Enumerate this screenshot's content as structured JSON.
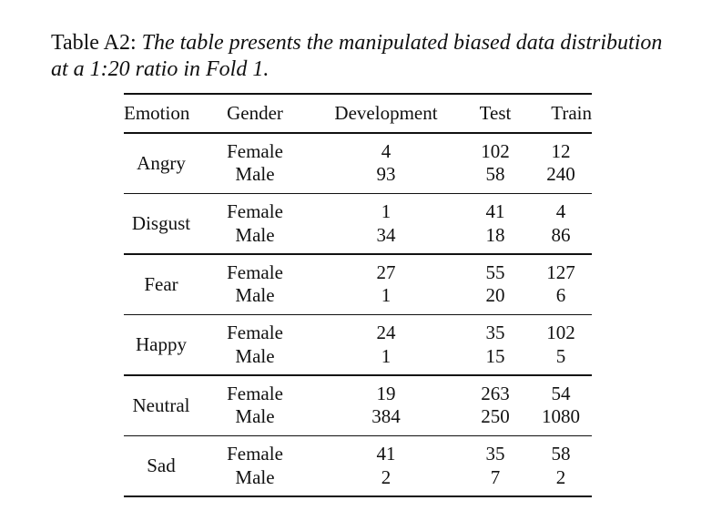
{
  "caption": {
    "label": "Table A2:",
    "text": "The table presents the manipulated biased data distribution at a 1:20 ratio in Fold 1."
  },
  "table": {
    "headers": [
      "Emotion",
      "Gender",
      "Development",
      "Test",
      "Train"
    ],
    "groups": [
      {
        "emotion": "Angry",
        "rows": [
          {
            "gender": "Female",
            "development": "4",
            "test": "102",
            "train": "12"
          },
          {
            "gender": "Male",
            "development": "93",
            "test": "58",
            "train": "240"
          }
        ]
      },
      {
        "emotion": "Disgust",
        "rows": [
          {
            "gender": "Female",
            "development": "1",
            "test": "41",
            "train": "4"
          },
          {
            "gender": "Male",
            "development": "34",
            "test": "18",
            "train": "86"
          }
        ]
      },
      {
        "emotion": "Fear",
        "rows": [
          {
            "gender": "Female",
            "development": "27",
            "test": "55",
            "train": "127"
          },
          {
            "gender": "Male",
            "development": "1",
            "test": "20",
            "train": "6"
          }
        ]
      },
      {
        "emotion": "Happy",
        "rows": [
          {
            "gender": "Female",
            "development": "24",
            "test": "35",
            "train": "102"
          },
          {
            "gender": "Male",
            "development": "1",
            "test": "15",
            "train": "5"
          }
        ]
      },
      {
        "emotion": "Neutral",
        "rows": [
          {
            "gender": "Female",
            "development": "19",
            "test": "263",
            "train": "54"
          },
          {
            "gender": "Male",
            "development": "384",
            "test": "250",
            "train": "1080"
          }
        ]
      },
      {
        "emotion": "Sad",
        "rows": [
          {
            "gender": "Female",
            "development": "41",
            "test": "35",
            "train": "58"
          },
          {
            "gender": "Male",
            "development": "2",
            "test": "7",
            "train": "2"
          }
        ]
      }
    ]
  }
}
